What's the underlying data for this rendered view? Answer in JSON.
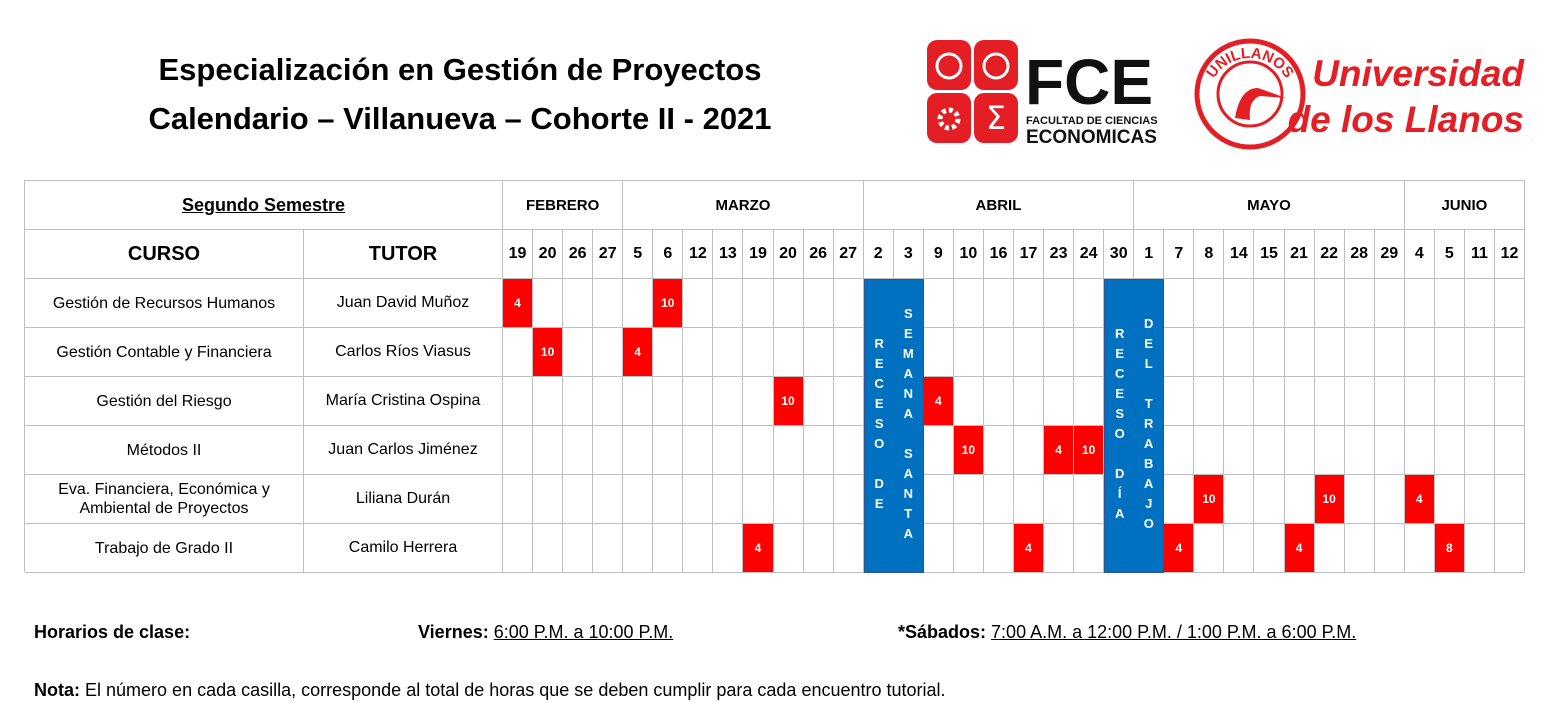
{
  "header": {
    "title_lines": [
      "Especialización en Gestión de Proyectos",
      "Calendario – Villanueva – Cohorte II - 2021"
    ],
    "fce_logo": {
      "acronym": "FCE",
      "line1": "FACULTAD DE CIENCIAS",
      "line2": "ECONOMICAS"
    },
    "university_logo": {
      "arc_text": "UNILLANOS",
      "line1": "Universidad",
      "line2": "de los Llanos"
    }
  },
  "table": {
    "semester": "Segundo Semestre",
    "course_header": "CURSO",
    "tutor_header": "TUTOR",
    "months": [
      {
        "name": "FEBRERO",
        "days": [
          19,
          20,
          26,
          27
        ]
      },
      {
        "name": "MARZO",
        "days": [
          5,
          6,
          12,
          13,
          19,
          20,
          26,
          27
        ]
      },
      {
        "name": "ABRIL",
        "days": [
          2,
          3,
          9,
          10,
          16,
          17,
          23,
          24,
          30
        ]
      },
      {
        "name": "MAYO",
        "days": [
          1,
          7,
          8,
          14,
          15,
          21,
          22,
          28,
          29
        ]
      },
      {
        "name": "JUNIO",
        "days": [
          4,
          5,
          11,
          12
        ]
      }
    ],
    "recesos": [
      {
        "lines": [
          "RECESO DE",
          "SEMANA SANTA"
        ]
      },
      {
        "lines": [
          "RECESO DÍA",
          "DEL TRABAJO"
        ]
      }
    ],
    "rows": [
      {
        "course": "Gestión de Recursos Humanos",
        "tutor": "Juan David Muñoz",
        "cells": [
          4,
          null,
          null,
          null,
          null,
          10,
          null,
          null,
          null,
          null,
          null,
          null,
          null,
          null,
          null,
          null,
          null,
          null,
          null,
          null,
          null,
          null,
          null,
          null,
          null,
          null,
          null,
          null,
          null,
          null,
          null,
          null,
          null,
          null
        ]
      },
      {
        "course": "Gestión Contable y Financiera",
        "tutor": "Carlos Ríos Viasus",
        "cells": [
          null,
          10,
          null,
          null,
          4,
          null,
          null,
          null,
          null,
          null,
          null,
          null,
          null,
          null,
          null,
          null,
          null,
          null,
          null,
          null,
          null,
          null,
          null,
          null,
          null,
          null,
          null,
          null,
          null,
          null,
          null,
          null,
          null,
          null
        ]
      },
      {
        "course": "Gestión del Riesgo",
        "tutor": "María Cristina Ospina",
        "cells": [
          null,
          null,
          null,
          null,
          null,
          null,
          null,
          null,
          null,
          10,
          null,
          null,
          null,
          null,
          4,
          null,
          null,
          null,
          null,
          null,
          null,
          null,
          null,
          null,
          null,
          null,
          null,
          null,
          null,
          null,
          null,
          null,
          null,
          null
        ]
      },
      {
        "course": "Métodos II",
        "tutor": "Juan Carlos Jiménez",
        "cells": [
          null,
          null,
          null,
          null,
          null,
          null,
          null,
          null,
          null,
          null,
          null,
          null,
          null,
          null,
          null,
          10,
          null,
          null,
          4,
          10,
          null,
          null,
          null,
          null,
          null,
          null,
          null,
          null,
          null,
          null,
          null,
          null,
          null,
          null
        ]
      },
      {
        "course": "Eva. Financiera, Económica y Ambiental de Proyectos",
        "tutor": "Liliana Durán",
        "cells": [
          null,
          null,
          null,
          null,
          null,
          null,
          null,
          null,
          null,
          null,
          null,
          null,
          null,
          null,
          null,
          null,
          null,
          null,
          null,
          null,
          null,
          null,
          null,
          10,
          null,
          null,
          null,
          10,
          null,
          null,
          4,
          null,
          null,
          null
        ]
      },
      {
        "course": "Trabajo de Grado II",
        "tutor": "Camilo Herrera",
        "cells": [
          null,
          null,
          null,
          null,
          null,
          null,
          null,
          null,
          4,
          null,
          null,
          null,
          null,
          null,
          null,
          null,
          null,
          4,
          null,
          null,
          null,
          null,
          4,
          null,
          null,
          null,
          4,
          null,
          null,
          null,
          null,
          8,
          null,
          null
        ]
      }
    ]
  },
  "footer": {
    "schedule_label": "Horarios de clase:",
    "friday_label": "Viernes:",
    "friday_hours": "6:00 P.M. a 10:00 P.M.",
    "saturday_label": "*Sábados:",
    "saturday_hours": "7:00 A.M. a 12:00 P.M. / 1:00 P.M. a 6:00 P.M.",
    "note_label": "Nota:",
    "note_text": "El número en cada casilla, corresponde al total de horas que se deben cumplir para cada encuentro tutorial."
  }
}
